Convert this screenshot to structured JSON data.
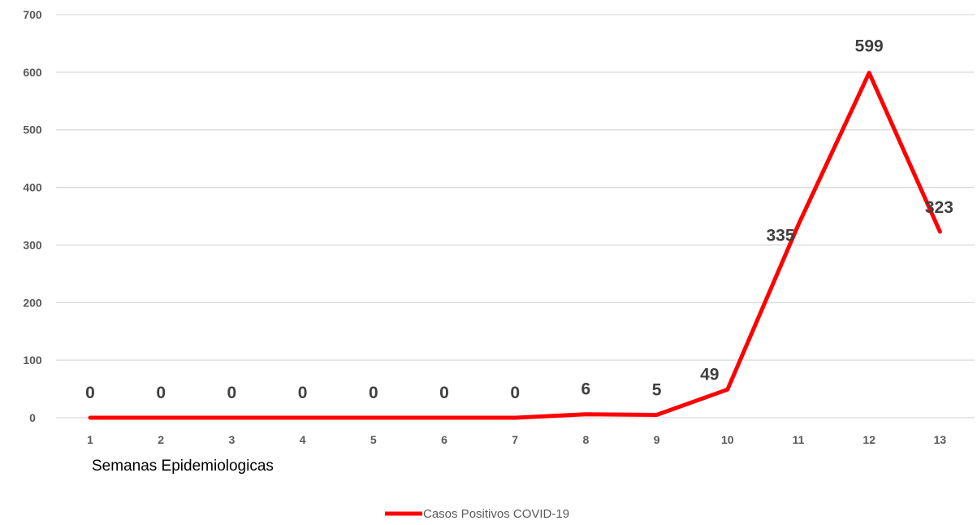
{
  "chart_data": {
    "type": "line",
    "categories": [
      "1",
      "2",
      "3",
      "4",
      "5",
      "6",
      "7",
      "8",
      "9",
      "10",
      "11",
      "12",
      "13"
    ],
    "series": [
      {
        "name": "Casos Positivos COVID-19",
        "values": [
          0,
          0,
          0,
          0,
          0,
          0,
          0,
          6,
          5,
          49,
          335,
          599,
          323
        ],
        "color": "#ff0000"
      }
    ],
    "ylim": [
      0,
      700
    ],
    "yticks": [
      0,
      100,
      200,
      300,
      400,
      500,
      600,
      700
    ],
    "xlabel": "Semanas Epidemiologicas",
    "ylabel": "",
    "title": "",
    "grid": true,
    "legend_position": "bottom-center",
    "gridline_color": "#d9d9d9",
    "data_labels": true
  }
}
